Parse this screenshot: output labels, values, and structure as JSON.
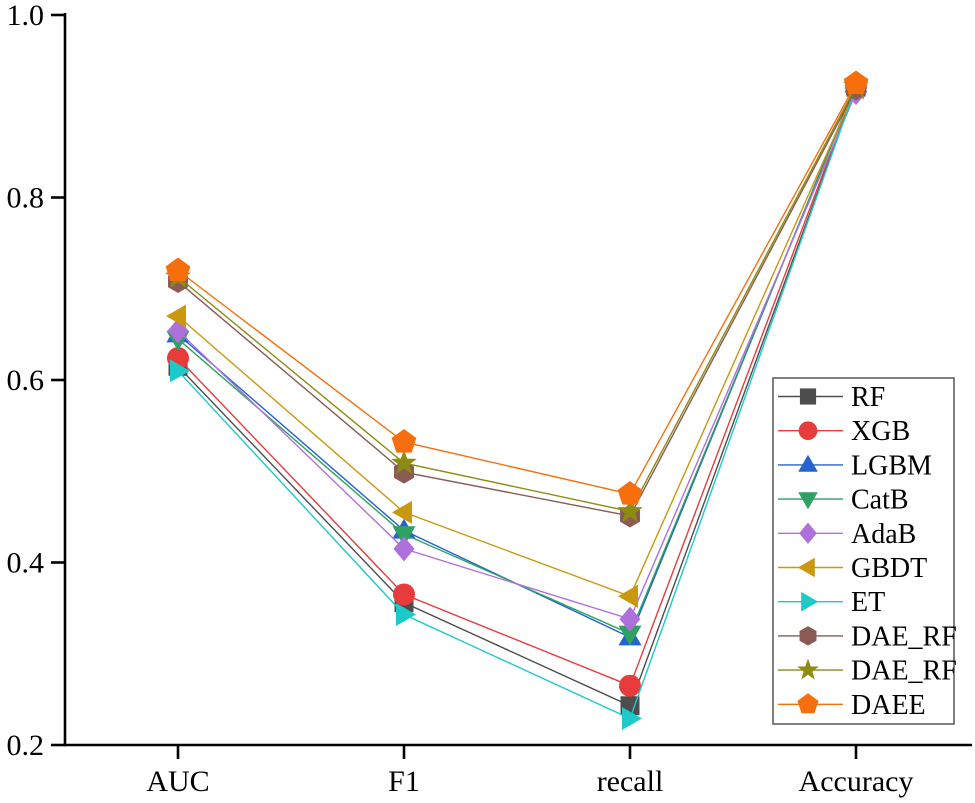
{
  "chart_data": {
    "type": "line",
    "title": "",
    "xlabel": "",
    "ylabel": "",
    "categories": [
      "AUC",
      "F1",
      "recall",
      "Accuracy"
    ],
    "ylim": [
      0.2,
      1.0
    ],
    "yticks": [
      "1.0",
      "0.8",
      "0.6",
      "0.4",
      "0.2"
    ],
    "ytick_values": [
      1.0,
      0.8,
      0.6,
      0.4,
      0.2
    ],
    "grid": false,
    "legend_position": "inside-right",
    "axis_color": "#000000",
    "legend_border_color": "#555555",
    "background_color": "#ffffff",
    "series": [
      {
        "name": "RF",
        "marker": "square",
        "color": "#4d4d4d",
        "values": [
          0.615,
          0.356,
          0.243,
          0.921
        ]
      },
      {
        "name": "XGB",
        "marker": "circle",
        "color": "#e83c3c",
        "values": [
          0.624,
          0.365,
          0.265,
          0.922
        ]
      },
      {
        "name": "LGBM",
        "marker": "triangle-up",
        "color": "#2563cf",
        "values": [
          0.65,
          0.435,
          0.318,
          0.924
        ]
      },
      {
        "name": "CatB",
        "marker": "triangle-down",
        "color": "#2ea163",
        "values": [
          0.645,
          0.431,
          0.322,
          0.922
        ]
      },
      {
        "name": "AdaB",
        "marker": "diamond",
        "color": "#b070dc",
        "values": [
          0.654,
          0.415,
          0.338,
          0.915
        ]
      },
      {
        "name": "GBDT",
        "marker": "triangle-left",
        "color": "#c9980f",
        "values": [
          0.67,
          0.455,
          0.363,
          0.92
        ]
      },
      {
        "name": "ET",
        "marker": "triangle-right",
        "color": "#1ec9c9",
        "values": [
          0.61,
          0.343,
          0.229,
          0.921
        ]
      },
      {
        "name": "DAE_RF",
        "marker": "hexagon",
        "color": "#8a5a55",
        "values": [
          0.708,
          0.499,
          0.451,
          0.919
        ]
      },
      {
        "name": "DAE_RF",
        "marker": "star",
        "color": "#8c8c12",
        "values": [
          0.713,
          0.509,
          0.456,
          0.922
        ]
      },
      {
        "name": "DAEE",
        "marker": "pentagon",
        "color": "#f76f0c",
        "values": [
          0.72,
          0.532,
          0.475,
          0.925
        ]
      }
    ]
  }
}
